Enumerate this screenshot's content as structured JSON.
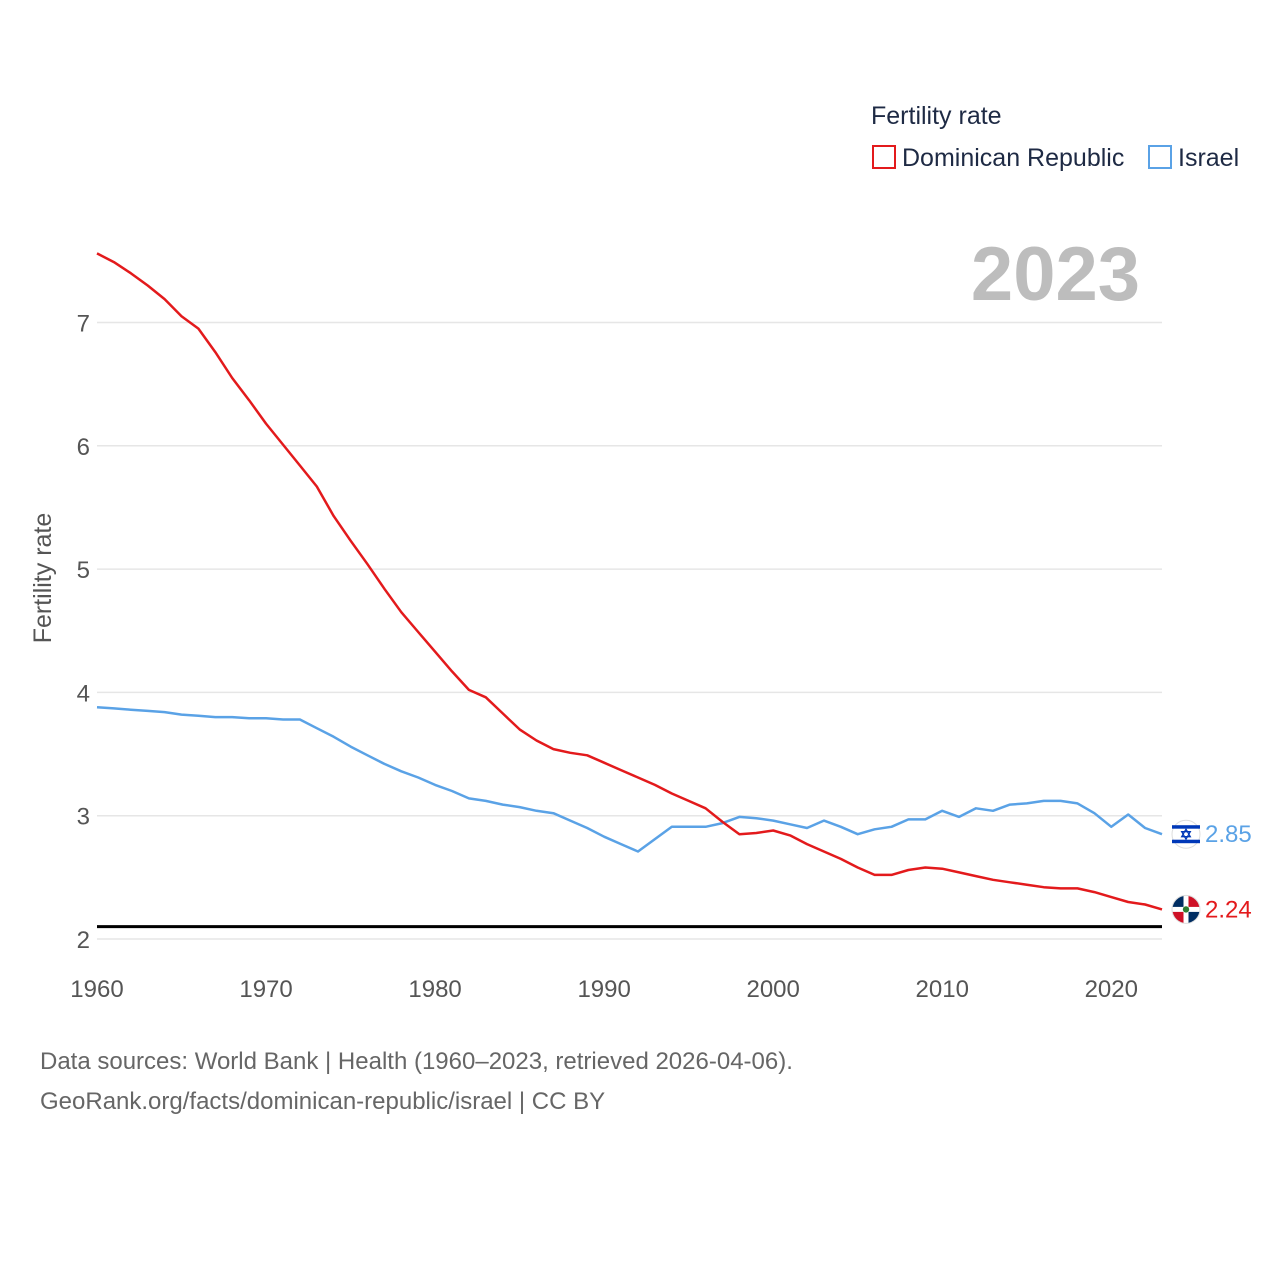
{
  "chart_data": {
    "type": "line",
    "legend_title": "Fertility rate",
    "ylabel": "Fertility rate",
    "year_label": "2023",
    "xlim": [
      1960,
      2023
    ],
    "ylim": [
      2,
      7.6
    ],
    "x_ticks": [
      1960,
      1970,
      1980,
      1990,
      2000,
      2010,
      2020
    ],
    "y_ticks": [
      2,
      3,
      4,
      5,
      6,
      7
    ],
    "reference_line": {
      "value": 2.1,
      "color": "#000000"
    },
    "series": [
      {
        "name": "Dominican Republic",
        "color": "#e31a1c",
        "end_label": "2.24",
        "x": [
          1960,
          1961,
          1962,
          1963,
          1964,
          1965,
          1966,
          1967,
          1968,
          1969,
          1970,
          1971,
          1972,
          1973,
          1974,
          1975,
          1976,
          1977,
          1978,
          1979,
          1980,
          1981,
          1982,
          1983,
          1984,
          1985,
          1986,
          1987,
          1988,
          1989,
          1990,
          1991,
          1992,
          1993,
          1994,
          1995,
          1996,
          1997,
          1998,
          1999,
          2000,
          2001,
          2002,
          2003,
          2004,
          2005,
          2006,
          2007,
          2008,
          2009,
          2010,
          2011,
          2012,
          2013,
          2014,
          2015,
          2016,
          2017,
          2018,
          2019,
          2020,
          2021,
          2022,
          2023
        ],
        "values": [
          7.56,
          7.49,
          7.4,
          7.3,
          7.19,
          7.05,
          6.95,
          6.76,
          6.55,
          6.37,
          6.18,
          6.01,
          5.84,
          5.67,
          5.43,
          5.23,
          5.04,
          4.84,
          4.65,
          4.49,
          4.33,
          4.17,
          4.02,
          3.96,
          3.83,
          3.7,
          3.61,
          3.54,
          3.51,
          3.49,
          3.43,
          3.37,
          3.31,
          3.25,
          3.18,
          3.12,
          3.06,
          2.95,
          2.85,
          2.86,
          2.88,
          2.84,
          2.77,
          2.71,
          2.65,
          2.58,
          2.52,
          2.52,
          2.56,
          2.58,
          2.57,
          2.54,
          2.51,
          2.48,
          2.46,
          2.44,
          2.42,
          2.41,
          2.41,
          2.38,
          2.34,
          2.3,
          2.28,
          2.24
        ]
      },
      {
        "name": "Israel",
        "color": "#5aa2e6",
        "end_label": "2.85",
        "x": [
          1960,
          1961,
          1962,
          1963,
          1964,
          1965,
          1966,
          1967,
          1968,
          1969,
          1970,
          1971,
          1972,
          1973,
          1974,
          1975,
          1976,
          1977,
          1978,
          1979,
          1980,
          1981,
          1982,
          1983,
          1984,
          1985,
          1986,
          1987,
          1988,
          1989,
          1990,
          1991,
          1992,
          1993,
          1994,
          1995,
          1996,
          1997,
          1998,
          1999,
          2000,
          2001,
          2002,
          2003,
          2004,
          2005,
          2006,
          2007,
          2008,
          2009,
          2010,
          2011,
          2012,
          2013,
          2014,
          2015,
          2016,
          2017,
          2018,
          2019,
          2020,
          2021,
          2022,
          2023
        ],
        "values": [
          3.88,
          3.87,
          3.86,
          3.85,
          3.84,
          3.82,
          3.81,
          3.8,
          3.8,
          3.79,
          3.79,
          3.78,
          3.78,
          3.71,
          3.64,
          3.56,
          3.49,
          3.42,
          3.36,
          3.31,
          3.25,
          3.2,
          3.14,
          3.12,
          3.09,
          3.07,
          3.04,
          3.02,
          2.96,
          2.9,
          2.83,
          2.77,
          2.71,
          2.81,
          2.91,
          2.91,
          2.91,
          2.94,
          2.99,
          2.98,
          2.96,
          2.93,
          2.9,
          2.96,
          2.91,
          2.85,
          2.89,
          2.91,
          2.97,
          2.97,
          3.04,
          2.99,
          3.06,
          3.04,
          3.09,
          3.1,
          3.12,
          3.12,
          3.1,
          3.02,
          2.91,
          3.01,
          2.9,
          2.85
        ]
      }
    ]
  },
  "footer": {
    "line1": "Data sources: World Bank | Health (1960–2023, retrieved 2026-04-06).",
    "line2": "GeoRank.org/facts/dominican-republic/israel | CC BY"
  }
}
